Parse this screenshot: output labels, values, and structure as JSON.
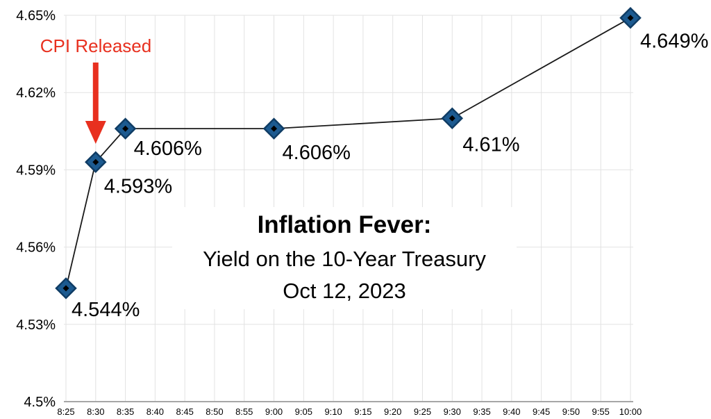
{
  "chart_data": {
    "type": "line",
    "title": "Inflation Fever:",
    "subtitle": "Yield on the 10-Year Treasury",
    "date_line": "Oct 12, 2023",
    "annotation": {
      "label": "CPI Released",
      "points_at_time": "8:30"
    },
    "x_ticks": [
      "8:25",
      "8:30",
      "8:35",
      "8:40",
      "8:45",
      "8:50",
      "8:55",
      "9:00",
      "9:05",
      "9:10",
      "9:15",
      "9:20",
      "9:25",
      "9:30",
      "9:35",
      "9:40",
      "9:45",
      "9:50",
      "9:55",
      "10:00"
    ],
    "y_ticks": [
      {
        "label": "4.65%",
        "value": 4.65
      },
      {
        "label": "4.62%",
        "value": 4.62
      },
      {
        "label": "4.59%",
        "value": 4.59
      },
      {
        "label": "4.56%",
        "value": 4.56
      },
      {
        "label": "4.53%",
        "value": 4.53
      },
      {
        "label": "4.5%",
        "value": 4.5
      }
    ],
    "y_range": [
      4.5,
      4.65
    ],
    "xlabel": "",
    "ylabel": "",
    "grid": true,
    "legend": "none",
    "series": [
      {
        "name": "10-Year Treasury Yield",
        "points": [
          {
            "time": "8:25",
            "value": 4.544,
            "label": "4.544%",
            "label_dx": 8,
            "label_dy": 40
          },
          {
            "time": "8:30",
            "value": 4.593,
            "label": "4.593%",
            "label_dx": 12,
            "label_dy": 44
          },
          {
            "time": "8:35",
            "value": 4.606,
            "label": "4.606%",
            "label_dx": 12,
            "label_dy": 38
          },
          {
            "time": "9:00",
            "value": 4.606,
            "label": "4.606%",
            "label_dx": 12,
            "label_dy": 44
          },
          {
            "time": "9:30",
            "value": 4.61,
            "label": "4.61%",
            "label_dx": 15,
            "label_dy": 47
          },
          {
            "time": "10:00",
            "value": 4.649,
            "label": "4.649%",
            "label_dx": 14,
            "label_dy": 43
          }
        ]
      }
    ],
    "colors": {
      "line": "#1a1a1a",
      "marker_fill": "#1c5a90",
      "marker_stroke": "#0f3c64",
      "marker_center": "#000000",
      "annotation": "#e8301f",
      "grid": "#e2e2e2",
      "axis": "#a6a6a6",
      "text": "#000000"
    }
  }
}
